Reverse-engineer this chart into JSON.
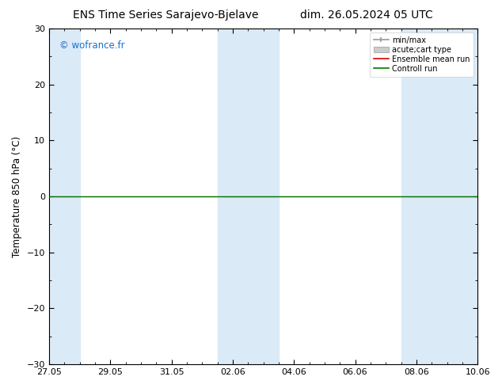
{
  "title": "ENS Time Series Sarajevo-Bjelave",
  "title_right": "dim. 26.05.2024 05 UTC",
  "ylabel": "Temperature 850 hPa (°C)",
  "watermark": "© wofrance.fr",
  "watermark_color": "#1a6fcc",
  "ylim": [
    -30,
    30
  ],
  "yticks": [
    -30,
    -20,
    -10,
    0,
    10,
    20,
    30
  ],
  "x_start_day": 0,
  "x_end_day": 14,
  "x_tick_labels": [
    "27.05",
    "29.05",
    "31.05",
    "02.06",
    "04.06",
    "06.06",
    "08.06",
    "10.06"
  ],
  "x_tick_positions": [
    0,
    2,
    4,
    6,
    8,
    10,
    12,
    14
  ],
  "shaded_bands": [
    {
      "start": 0.0,
      "end": 1.0
    },
    {
      "start": 5.5,
      "end": 6.5
    },
    {
      "start": 6.5,
      "end": 7.5
    },
    {
      "start": 11.5,
      "end": 12.5
    },
    {
      "start": 12.5,
      "end": 14.0
    }
  ],
  "shaded_color": "#daeaf7",
  "ensemble_mean_color": "#dd0000",
  "control_run_color": "#007700",
  "minmax_color": "#999999",
  "acute_color": "#cccccc",
  "background_color": "#ffffff",
  "zero_line_y": 0.0,
  "title_fontsize": 10,
  "tick_fontsize": 8,
  "legend_fontsize": 7,
  "ylabel_fontsize": 8.5,
  "legend_labels": [
    "min/max",
    "acute;cart type",
    "Ensemble mean run",
    "Controll run"
  ]
}
